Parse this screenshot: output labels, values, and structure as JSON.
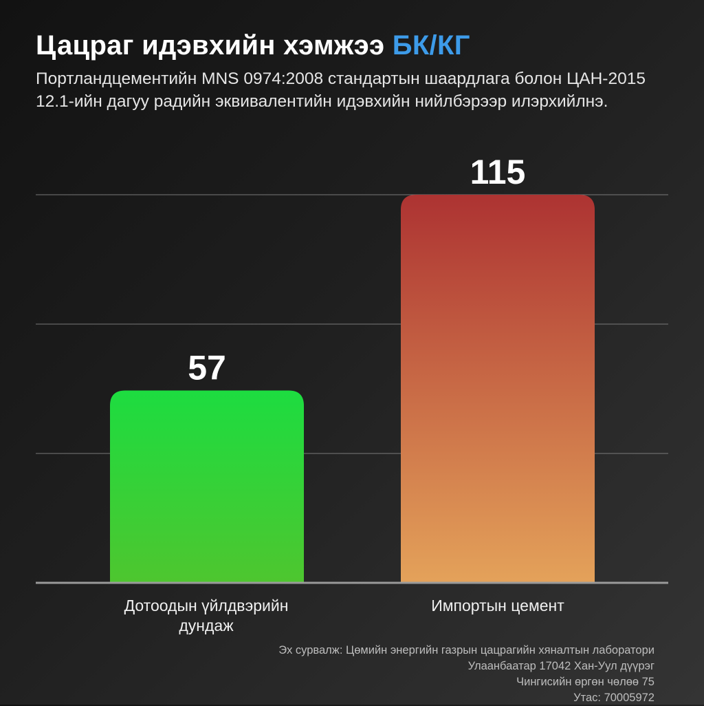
{
  "title_main": "Цацраг идэвхийн хэмжээ",
  "title_unit": "БК/КГ",
  "subtitle": "Портландцементийн MNS 0974:2008 стандартын шаардлага болон ЦАН-2015 12.1-ийн дагуу радийн эквивалентийн идэвхийн нийлбэрээр илэрхийлнэ.",
  "chart_data": {
    "type": "bar",
    "categories": [
      "Дотоодын үйлдвэрийн дундаж",
      "Импортын цемент"
    ],
    "values": [
      57,
      115
    ],
    "data_labels": [
      "57",
      "115"
    ],
    "ylim": [
      0,
      115
    ],
    "grid": true,
    "bar_colors": [
      {
        "top": "#1ddc40",
        "bottom": "#4ec62f"
      },
      {
        "top": "#ad3332",
        "bottom": "#e4a25a"
      }
    ]
  },
  "source": [
    "Эх сурвалж: Цөмийн энергийн газрын цацрагийн хяналтын лаборатори",
    "Улаанбаатар 17042 Хан-Уул дүүрэг",
    "Чингисийн өргөн чөлөө  75",
    "Утас: 70005972"
  ]
}
